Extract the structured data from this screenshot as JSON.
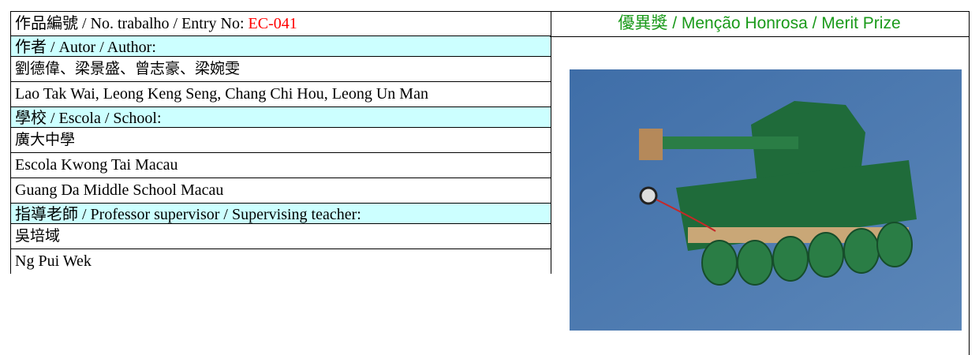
{
  "entry": {
    "label": "作品編號 / No. trabalho / Entry No:",
    "number": "EC-041"
  },
  "prize": "優異獎 / Menção Honrosa / Merit Prize",
  "sections": [
    {
      "heading": "作者 / Autor / Author:",
      "lines": [
        "劉德偉、梁景盛、曾志豪、梁婉雯",
        "Lao Tak Wai, Leong Keng Seng, Chang Chi Hou, Leong Un Man"
      ]
    },
    {
      "heading": "學校 / Escola / School:",
      "lines": [
        "廣大中學",
        "Escola Kwong Tai Macau",
        "Guang Da Middle School Macau"
      ]
    },
    {
      "heading": "指導老師 / Professor supervisor / Supervising teacher:",
      "lines": [
        "吳培域",
        "Ng Pui Wek"
      ]
    }
  ]
}
